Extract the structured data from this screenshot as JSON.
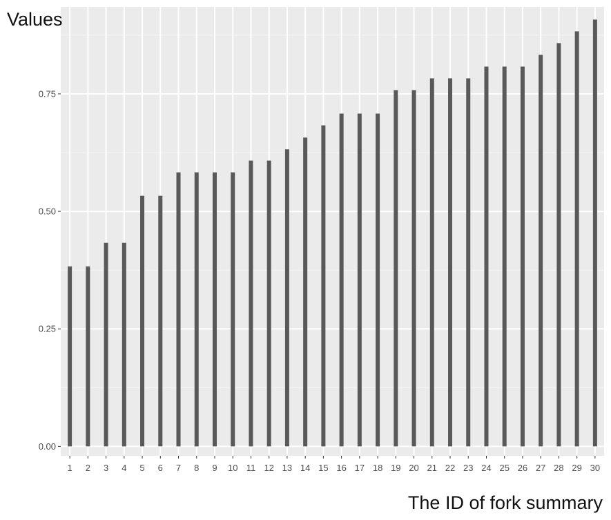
{
  "chart_data": {
    "type": "bar",
    "title": "",
    "xlabel": "The ID of fork summary",
    "ylabel": "Values",
    "categories": [
      "1",
      "2",
      "3",
      "4",
      "5",
      "6",
      "7",
      "8",
      "9",
      "10",
      "11",
      "12",
      "13",
      "14",
      "15",
      "16",
      "17",
      "18",
      "19",
      "20",
      "21",
      "22",
      "23",
      "24",
      "25",
      "26",
      "27",
      "28",
      "29",
      "30"
    ],
    "values": [
      0.383,
      0.383,
      0.433,
      0.433,
      0.533,
      0.533,
      0.583,
      0.583,
      0.583,
      0.583,
      0.608,
      0.608,
      0.632,
      0.657,
      0.683,
      0.708,
      0.708,
      0.708,
      0.758,
      0.758,
      0.783,
      0.783,
      0.783,
      0.808,
      0.808,
      0.808,
      0.833,
      0.858,
      0.883,
      0.908
    ],
    "ylim": [
      -0.02,
      0.935
    ],
    "yticks": [
      0.0,
      0.25,
      0.5,
      0.75
    ],
    "ytick_labels": [
      "0.00",
      "0.25",
      "0.50",
      "0.75"
    ],
    "grid": true,
    "legend": "none",
    "colors": {
      "bar": "#595959",
      "panel_background": "#ebebeb",
      "grid_major": "#ffffff",
      "tick_text": "#4d4d4d",
      "axis_title": "#111111"
    }
  }
}
